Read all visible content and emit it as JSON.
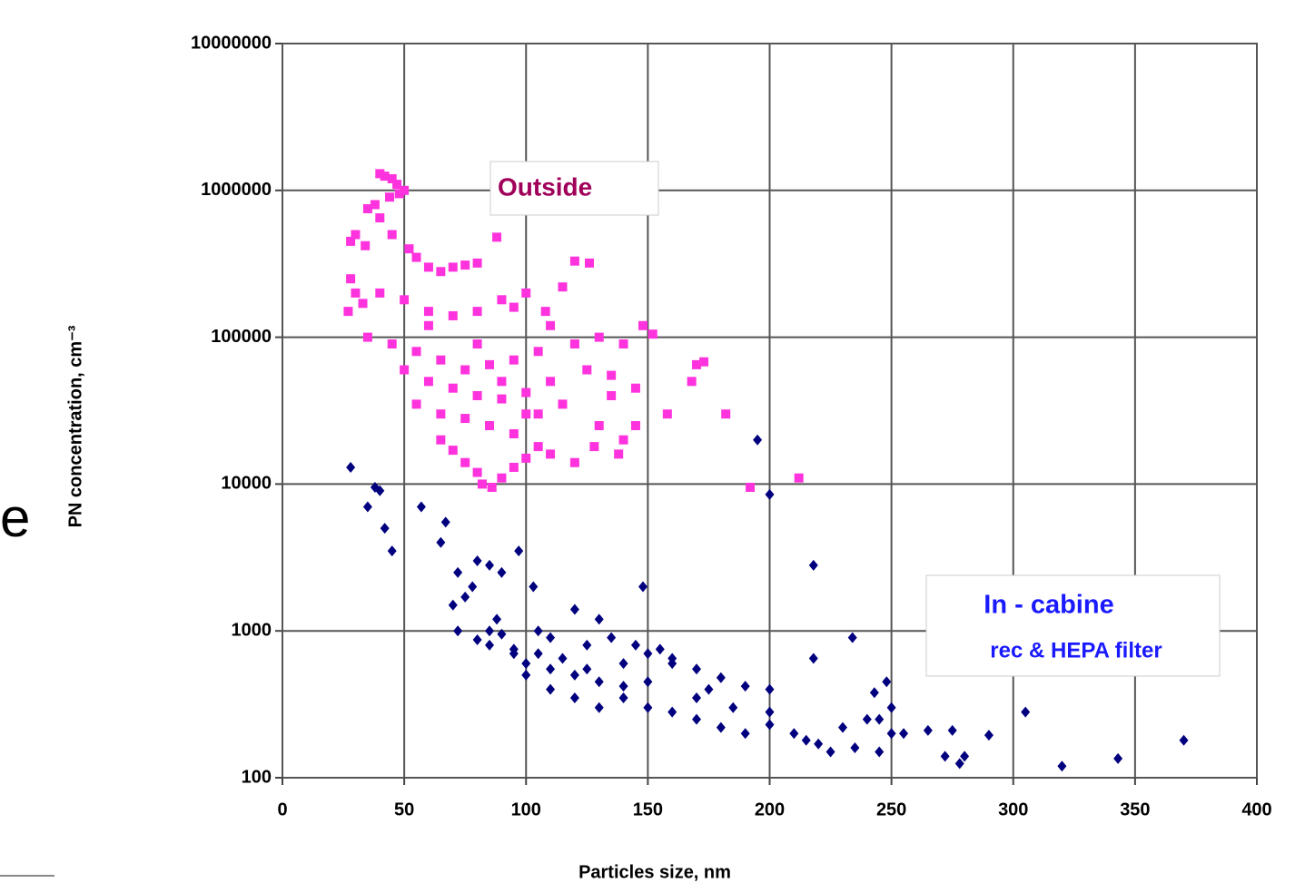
{
  "chart_data": {
    "type": "scatter",
    "x_label": "Particles size, nm",
    "y_label": "PN concentration, cm⁻³",
    "xlim": [
      0,
      400
    ],
    "xticks": [
      0,
      50,
      100,
      150,
      200,
      250,
      300,
      350,
      400
    ],
    "ylim": [
      100,
      10000000
    ],
    "yticks": [
      100,
      1000,
      10000,
      100000,
      1000000,
      10000000
    ],
    "log_y": true,
    "grid": true,
    "annotations": [
      "Outside",
      "In - cabine",
      "rec &  HEPA filter",
      "e"
    ],
    "series": [
      {
        "color": "#ff33dd",
        "marker": "square",
        "x": [
          40,
          42,
          45,
          47,
          44,
          50,
          48,
          38,
          35,
          40,
          30,
          28,
          34,
          45,
          52,
          55,
          60,
          65,
          70,
          75,
          80,
          88,
          28,
          30,
          27,
          33,
          40,
          50,
          60,
          70,
          80,
          90,
          95,
          100,
          120,
          126,
          115,
          108,
          110,
          35,
          45,
          55,
          65,
          75,
          85,
          95,
          105,
          120,
          130,
          140,
          148,
          152,
          50,
          60,
          70,
          80,
          90,
          100,
          110,
          125,
          135,
          145,
          55,
          65,
          75,
          85,
          95,
          105,
          115,
          130,
          140,
          65,
          70,
          75,
          80,
          82,
          86,
          90,
          95,
          100,
          105,
          110,
          120,
          158,
          168,
          170,
          173,
          182,
          192,
          212,
          128,
          138,
          145,
          135,
          60,
          80,
          90,
          100
        ],
        "values": [
          1300000,
          1250000,
          1200000,
          1100000,
          900000,
          1000000,
          950000,
          800000,
          750000,
          650000,
          500000,
          450000,
          420000,
          500000,
          400000,
          350000,
          300000,
          280000,
          300000,
          310000,
          320000,
          480000,
          250000,
          200000,
          150000,
          170000,
          200000,
          180000,
          150000,
          140000,
          150000,
          180000,
          160000,
          200000,
          330000,
          320000,
          220000,
          150000,
          120000,
          100000,
          90000,
          80000,
          70000,
          60000,
          65000,
          70000,
          80000,
          90000,
          100000,
          90000,
          120000,
          105000,
          60000,
          50000,
          45000,
          40000,
          38000,
          42000,
          50000,
          60000,
          55000,
          45000,
          35000,
          30000,
          28000,
          25000,
          22000,
          30000,
          35000,
          25000,
          20000,
          20000,
          17000,
          14000,
          12000,
          10000,
          9500,
          11000,
          13000,
          15000,
          18000,
          16000,
          14000,
          30000,
          50000,
          65000,
          68000,
          30000,
          9500,
          11000,
          18000,
          16000,
          25000,
          40000,
          120000,
          90000,
          50000,
          30000
        ]
      },
      {
        "color": "#00007f",
        "marker": "diamond",
        "x": [
          28,
          35,
          38,
          40,
          42,
          45,
          57,
          65,
          67,
          70,
          72,
          75,
          78,
          80,
          85,
          88,
          90,
          97,
          72,
          80,
          85,
          90,
          95,
          100,
          105,
          110,
          103,
          120,
          130,
          148,
          85,
          100,
          110,
          120,
          130,
          140,
          150,
          160,
          170,
          180,
          190,
          200,
          95,
          115,
          125,
          135,
          145,
          155,
          110,
          120,
          130,
          140,
          150,
          160,
          170,
          180,
          190,
          200,
          210,
          150,
          170,
          185,
          200,
          215,
          220,
          225,
          230,
          235,
          240,
          245,
          250,
          255,
          265,
          272,
          275,
          278,
          280,
          290,
          305,
          320,
          343,
          370,
          195,
          200,
          218,
          218,
          234,
          243,
          248,
          245,
          250,
          160,
          140,
          125,
          105,
          175
        ],
        "values": [
          13000,
          7000,
          9500,
          9000,
          5000,
          3500,
          7000,
          4000,
          5500,
          1500,
          2500,
          1700,
          2000,
          3000,
          2800,
          1200,
          2500,
          3500,
          1000,
          870,
          800,
          950,
          700,
          600,
          1000,
          900,
          2000,
          1400,
          1200,
          2000,
          1000,
          500,
          400,
          500,
          450,
          600,
          700,
          650,
          550,
          480,
          420,
          400,
          750,
          650,
          800,
          900,
          800,
          750,
          550,
          350,
          300,
          350,
          300,
          280,
          250,
          220,
          200,
          230,
          200,
          450,
          350,
          300,
          280,
          180,
          170,
          150,
          220,
          160,
          250,
          150,
          300,
          200,
          210,
          140,
          210,
          125,
          140,
          195,
          280,
          120,
          135,
          180,
          20000,
          8500,
          2800,
          650,
          900,
          380,
          450,
          250,
          200,
          600,
          420,
          550,
          700,
          400
        ]
      }
    ]
  }
}
